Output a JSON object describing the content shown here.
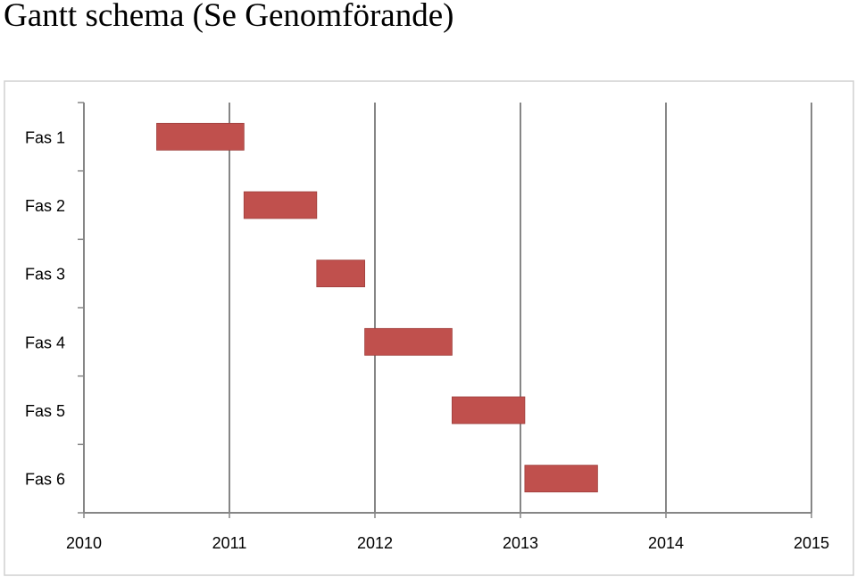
{
  "title": "Gantt schema (Se Genomförande)",
  "chart_data": {
    "type": "bar",
    "orientation": "horizontal-gantt",
    "title": "Gantt schema (Se Genomförande)",
    "xlabel": "",
    "ylabel": "",
    "xlim": [
      2010,
      2015
    ],
    "x_ticks": [
      "2010",
      "2011",
      "2012",
      "2013",
      "2014",
      "2015"
    ],
    "grid": "vertical",
    "legend": "none",
    "bar_color": "#c0504d",
    "tasks": [
      {
        "label": "Fas 1",
        "start": 2010.5,
        "end": 2011.1
      },
      {
        "label": "Fas 2",
        "start": 2011.1,
        "end": 2011.6
      },
      {
        "label": "Fas 3",
        "start": 2011.6,
        "end": 2011.93
      },
      {
        "label": "Fas 4",
        "start": 2011.93,
        "end": 2012.53
      },
      {
        "label": "Fas 5",
        "start": 2012.53,
        "end": 2013.03
      },
      {
        "label": "Fas 6",
        "start": 2013.03,
        "end": 2013.53
      }
    ]
  }
}
